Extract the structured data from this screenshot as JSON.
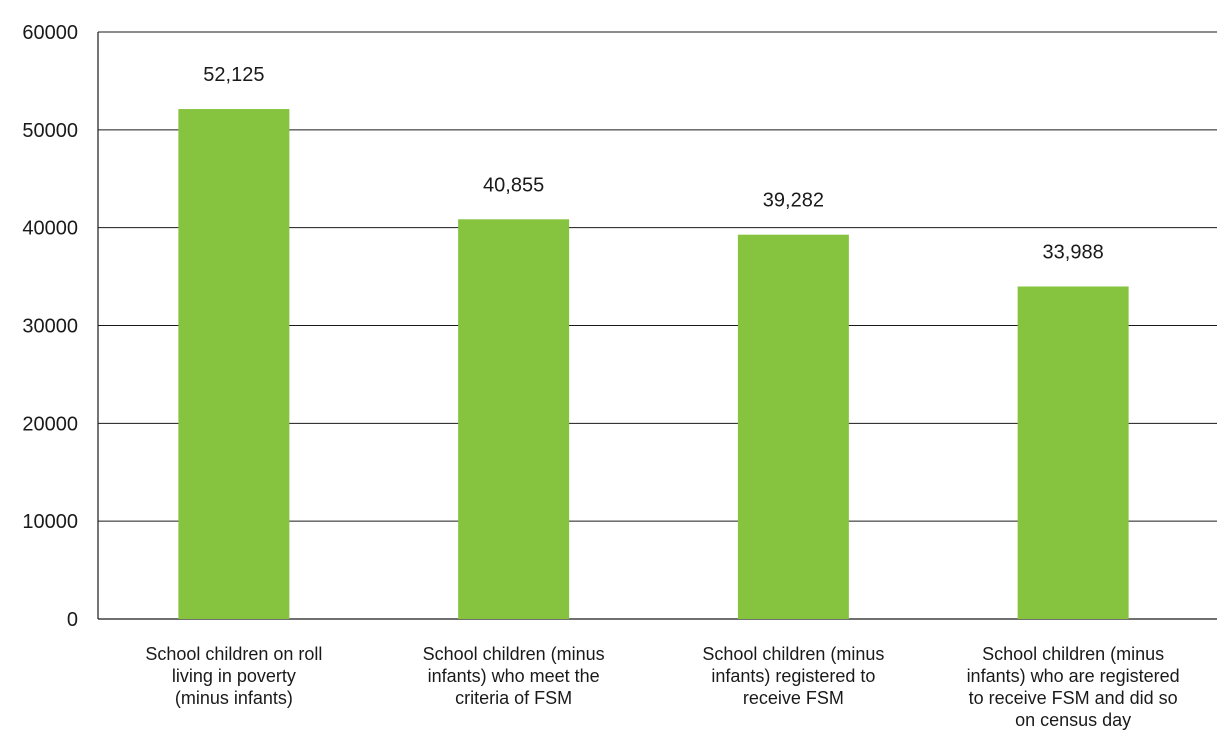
{
  "chart_data": {
    "type": "bar",
    "title": "",
    "xlabel": "",
    "ylabel": "",
    "categories": [
      [
        "School children on roll",
        "living in poverty",
        "(minus infants)"
      ],
      [
        "School children (minus",
        "infants) who meet the",
        "criteria of FSM"
      ],
      [
        "School children (minus",
        "infants) registered to",
        "receive FSM"
      ],
      [
        "School children (minus",
        "infants) who are registered",
        "to receive FSM and did so",
        "on census day"
      ]
    ],
    "values": [
      52125,
      40855,
      39282,
      33988
    ],
    "data_labels": [
      "52,125",
      "40,855",
      "39,282",
      "33,988"
    ],
    "ylim": [
      0,
      60000
    ],
    "yticks": [
      0,
      10000,
      20000,
      30000,
      40000,
      50000,
      60000
    ],
    "ytick_labels": [
      "0",
      "10000",
      "20000",
      "30000",
      "40000",
      "50000",
      "60000"
    ],
    "grid": true,
    "legend": "none",
    "bar_color": "#86c440"
  }
}
